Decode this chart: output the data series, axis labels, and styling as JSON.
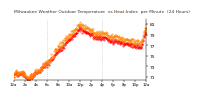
{
  "title": "Milwaukee Weather Outdoor Temperature  vs Heat Index  per Minute  (24 Hours)",
  "title_fontsize": 3.2,
  "bg_color": "#ffffff",
  "temp_color": "#ff0000",
  "heat_color": "#ff8800",
  "ylim": [
    70.5,
    82.0
  ],
  "yticks": [
    71,
    73,
    75,
    77,
    79,
    81
  ],
  "ylabel_fontsize": 3.2,
  "xlabel_fontsize": 2.8,
  "vline_color": "#bbbbbb",
  "vline_x1": 360,
  "vline_x2": 960,
  "n_minutes": 1440,
  "markersize": 0.7,
  "x_tick_step": 120
}
